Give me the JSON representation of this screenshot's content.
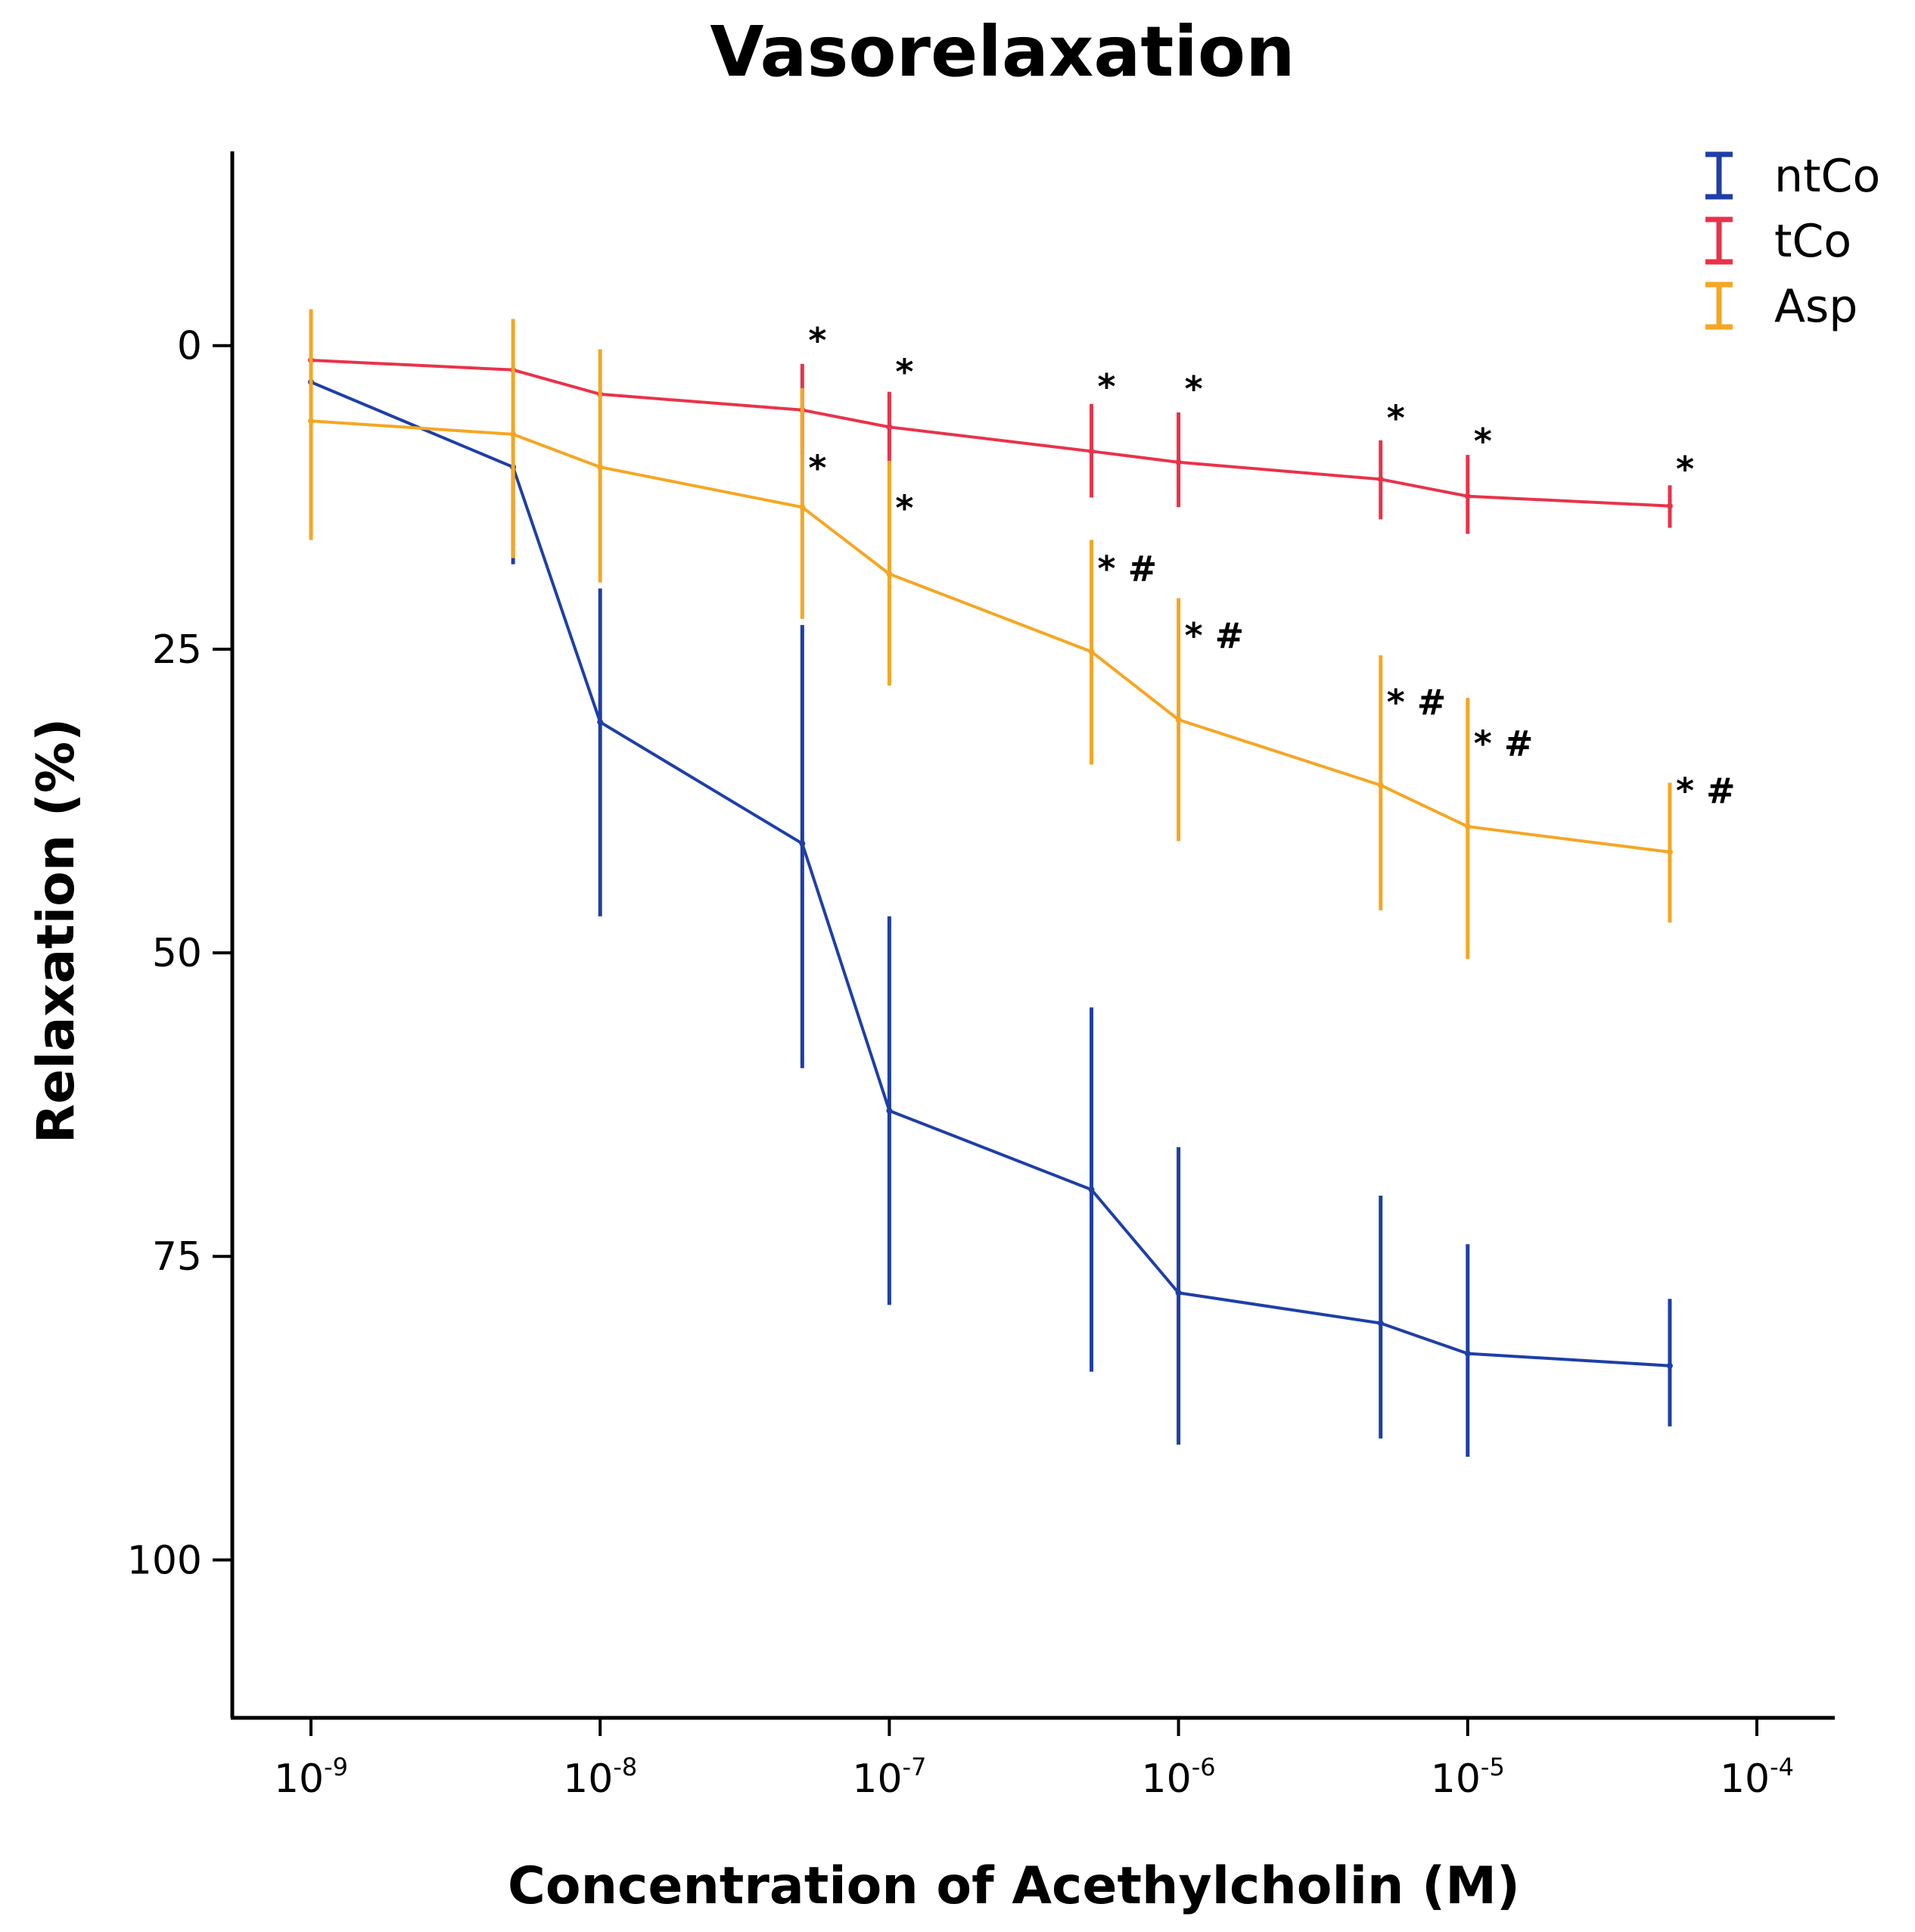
{
  "chart_data": {
    "type": "line",
    "title": "Vasorelaxation",
    "xlabel": "Concentration of Acethylcholin (M)",
    "ylabel": "Relaxation (%)",
    "x_scale": "log",
    "xlim": [
      1e-09,
      0.0001
    ],
    "ylim": [
      -16,
      113
    ],
    "y_inverted": true,
    "x_ticks": [
      {
        "base": "10",
        "exp": "-9",
        "value": 1e-09
      },
      {
        "base": "10",
        "exp": "-8",
        "value": 1e-08
      },
      {
        "base": "10",
        "exp": "-7",
        "value": 1e-07
      },
      {
        "base": "10",
        "exp": "-6",
        "value": 1e-06
      },
      {
        "base": "10",
        "exp": "-5",
        "value": 1e-05
      },
      {
        "base": "10",
        "exp": "-4",
        "value": 0.0001
      }
    ],
    "y_ticks": [
      {
        "label": "0",
        "value": 0
      },
      {
        "label": "25",
        "value": 25
      },
      {
        "label": "50",
        "value": 50
      },
      {
        "label": "75",
        "value": 75
      },
      {
        "label": "100",
        "value": 100
      }
    ],
    "legend_position": "top-right",
    "x": [
      1e-09,
      5e-09,
      1e-08,
      5e-08,
      1e-07,
      5e-07,
      1e-06,
      5e-06,
      1e-05,
      5e-05
    ],
    "series": [
      {
        "name": "ntCo",
        "color": "#1e3fa8",
        "values": [
          3,
          10,
          31,
          41,
          63,
          69.5,
          78,
          80.5,
          83,
          84
        ],
        "err_low": [
          3,
          10,
          20,
          23,
          47,
          54.5,
          66,
          70,
          74,
          78.5
        ],
        "err_high": [
          3,
          18,
          47,
          59.5,
          79,
          84.5,
          90.5,
          90,
          91.5,
          89
        ]
      },
      {
        "name": "tCo",
        "color": "#e8334a",
        "values": [
          1.2,
          2,
          4,
          5.3,
          6.7,
          8.7,
          9.6,
          11,
          12.4,
          13.2
        ],
        "err_low": [
          1.2,
          2,
          4,
          1.5,
          3.8,
          4.8,
          5.5,
          7.8,
          9,
          11.5
        ],
        "err_high": [
          1.2,
          2,
          4,
          9,
          9.5,
          12.5,
          13.3,
          14.3,
          15.5,
          15
        ]
      },
      {
        "name": "Asp",
        "color": "#f5a623",
        "values": [
          6.2,
          7.3,
          10,
          13.3,
          18.8,
          25.2,
          30.8,
          36.2,
          39.6,
          41.7
        ],
        "err_low": [
          -3,
          -2.2,
          0.3,
          3.5,
          9.5,
          16,
          20.8,
          25.5,
          29,
          36
        ],
        "err_high": [
          16,
          17.5,
          19.5,
          22.5,
          28,
          34.5,
          40.8,
          46.5,
          50.5,
          47.5
        ]
      }
    ],
    "annotations": [
      {
        "text": "*",
        "x": 5e-08,
        "y": -0.8
      },
      {
        "text": "*",
        "x": 1e-07,
        "y": 1.8
      },
      {
        "text": "*",
        "x": 5e-07,
        "y": 3
      },
      {
        "text": "*",
        "x": 1e-06,
        "y": 3.2
      },
      {
        "text": "*",
        "x": 5e-06,
        "y": 5.6
      },
      {
        "text": "*",
        "x": 1e-05,
        "y": 7.5
      },
      {
        "text": "*",
        "x": 5e-05,
        "y": 9.8
      },
      {
        "text": "*",
        "x": 5e-08,
        "y": 9.7
      },
      {
        "text": "*",
        "x": 1e-07,
        "y": 13
      },
      {
        "text": "* #",
        "x": 5e-07,
        "y": 18
      },
      {
        "text": "* #",
        "x": 1e-06,
        "y": 23.5
      },
      {
        "text": "* #",
        "x": 5e-06,
        "y": 29
      },
      {
        "text": "* #",
        "x": 1e-05,
        "y": 32.4
      },
      {
        "text": "* #",
        "x": 5e-05,
        "y": 36.3
      }
    ]
  }
}
